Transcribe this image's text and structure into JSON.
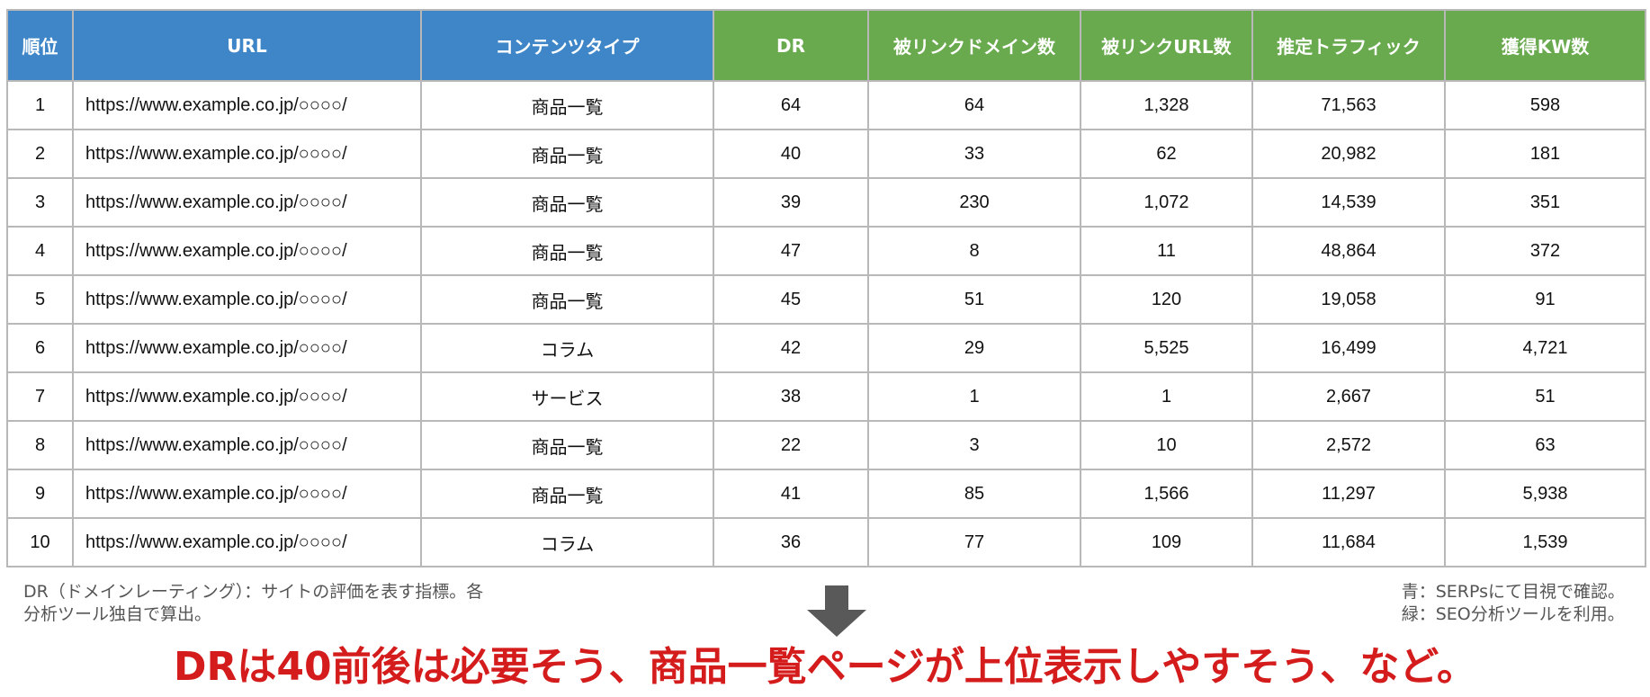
{
  "table": {
    "headers": [
      {
        "label": "順位",
        "color": "blue"
      },
      {
        "label": "URL",
        "color": "blue"
      },
      {
        "label": "コンテンツタイプ",
        "color": "blue"
      },
      {
        "label": "DR",
        "color": "green"
      },
      {
        "label": "被リンクドメイン数",
        "color": "green"
      },
      {
        "label": "被リンクURL数",
        "color": "green"
      },
      {
        "label": "推定トラフィック",
        "color": "green"
      },
      {
        "label": "獲得KW数",
        "color": "green"
      }
    ],
    "header_colors": {
      "blue": "#3e86c8",
      "green": "#6aaa4e"
    },
    "rows": [
      [
        "1",
        "https://www.example.co.jp/○○○○/",
        "商品一覧",
        "64",
        "64",
        "1,328",
        "71,563",
        "598"
      ],
      [
        "2",
        "https://www.example.co.jp/○○○○/",
        "商品一覧",
        "40",
        "33",
        "62",
        "20,982",
        "181"
      ],
      [
        "3",
        "https://www.example.co.jp/○○○○/",
        "商品一覧",
        "39",
        "230",
        "1,072",
        "14,539",
        "351"
      ],
      [
        "4",
        "https://www.example.co.jp/○○○○/",
        "商品一覧",
        "47",
        "8",
        "11",
        "48,864",
        "372"
      ],
      [
        "5",
        "https://www.example.co.jp/○○○○/",
        "商品一覧",
        "45",
        "51",
        "120",
        "19,058",
        "91"
      ],
      [
        "6",
        "https://www.example.co.jp/○○○○/",
        "コラム",
        "42",
        "29",
        "5,525",
        "16,499",
        "4,721"
      ],
      [
        "7",
        "https://www.example.co.jp/○○○○/",
        "サービス",
        "38",
        "1",
        "1",
        "2,667",
        "51"
      ],
      [
        "8",
        "https://www.example.co.jp/○○○○/",
        "商品一覧",
        "22",
        "3",
        "10",
        "2,572",
        "63"
      ],
      [
        "9",
        "https://www.example.co.jp/○○○○/",
        "商品一覧",
        "41",
        "85",
        "1,566",
        "11,297",
        "5,938"
      ],
      [
        "10",
        "https://www.example.co.jp/○○○○/",
        "コラム",
        "36",
        "77",
        "109",
        "11,684",
        "1,539"
      ]
    ]
  },
  "notes": {
    "left": [
      "DR（ドメインレーティング）：サイトの評価を表す指標。各",
      "分析ツール独自で算出。"
    ],
    "right": [
      "青：SERPsにて目視で確認。",
      "緑：SEO分析ツールを利用。"
    ]
  },
  "arrow": {
    "icon": "down-arrow-icon",
    "color": "#595959"
  },
  "conclusion": {
    "text": "DRは40前後は必要そう、商品一覧ページが上位表示しやすそう、など。",
    "color": "#d41c1c"
  }
}
